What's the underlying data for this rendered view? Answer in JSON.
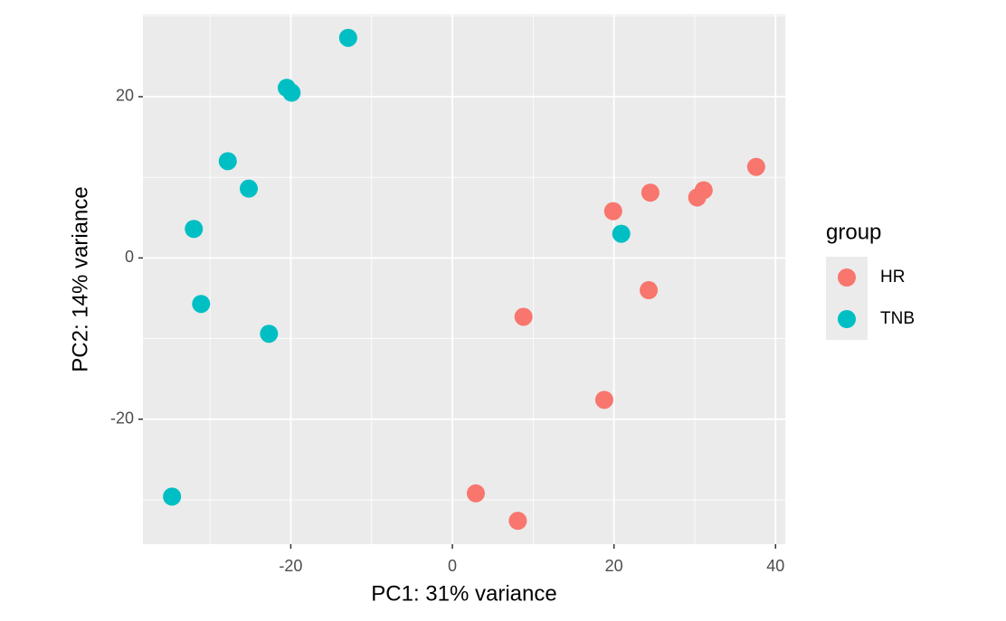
{
  "chart_data": {
    "type": "scatter",
    "xlabel": "PC1: 31% variance",
    "ylabel": "PC2: 14% variance",
    "legend_title": "group",
    "legend_position": "right",
    "grid": true,
    "xlim": [
      -38.3,
      41.2
    ],
    "ylim": [
      -35.5,
      30.2
    ],
    "xticks": [
      -20,
      0,
      20,
      40
    ],
    "yticks": [
      -20,
      0,
      20
    ],
    "xminor_ticks": [
      -30,
      -10,
      10,
      30
    ],
    "yminor_ticks": [
      -30,
      -10,
      10,
      30
    ],
    "series": [
      {
        "name": "HR",
        "color": "#F8766D",
        "x": [
          19.9,
          24.5,
          30.3,
          31.1,
          37.6,
          24.3,
          8.8,
          18.8,
          2.9,
          8.1
        ],
        "values": [
          5.8,
          8.1,
          7.5,
          8.4,
          11.3,
          -4.0,
          -7.3,
          -17.6,
          -29.2,
          -32.6
        ]
      },
      {
        "name": "TNB",
        "color": "#00BFC4",
        "x": [
          -12.9,
          -20.5,
          -19.9,
          -27.8,
          -25.2,
          -32.0,
          -31.1,
          -22.7,
          -34.7,
          20.9
        ],
        "values": [
          27.3,
          21.1,
          20.5,
          12.0,
          8.6,
          3.6,
          -5.7,
          -9.4,
          -29.6,
          3.0
        ]
      }
    ]
  }
}
